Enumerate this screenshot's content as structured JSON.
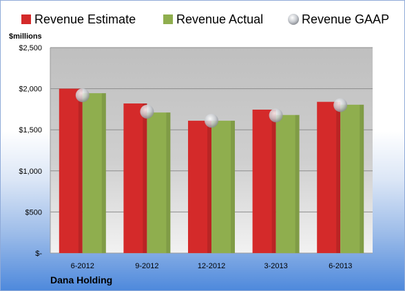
{
  "chart_data": {
    "type": "bar",
    "unit_label": "$millions",
    "company": "Dana Holding",
    "categories": [
      "6-2012",
      "9-2012",
      "12-2012",
      "3-2013",
      "6-2013"
    ],
    "series": [
      {
        "name": "Revenue Estimate",
        "kind": "bar",
        "color": "#d42a2a",
        "values": [
          2000,
          1820,
          1610,
          1745,
          1840
        ]
      },
      {
        "name": "Revenue Actual",
        "kind": "bar",
        "color": "#8fae4e",
        "values": [
          1945,
          1710,
          1610,
          1680,
          1805
        ]
      },
      {
        "name": "Revenue GAAP",
        "kind": "marker",
        "color": "#c8ccd2",
        "values": [
          1920,
          1720,
          1610,
          1675,
          1800
        ]
      }
    ],
    "ylim": [
      0,
      2500
    ],
    "yticks": [
      0,
      500,
      1000,
      1500,
      2000,
      2500
    ],
    "ytick_labels": [
      "$-",
      "$500",
      "$1,000",
      "$1,500",
      "$2,000",
      "$2,500"
    ],
    "grid": true,
    "legend_position": "top"
  }
}
